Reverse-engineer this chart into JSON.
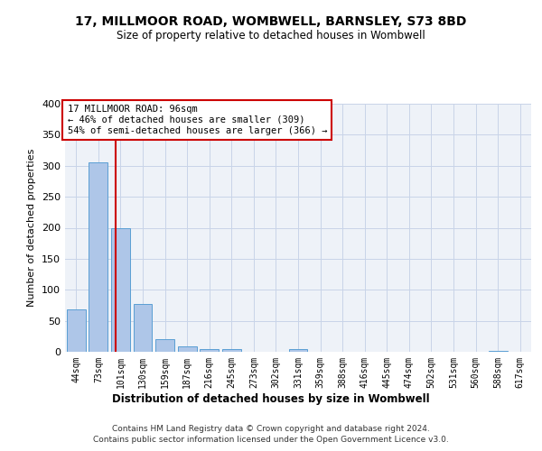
{
  "title": "17, MILLMOOR ROAD, WOMBWELL, BARNSLEY, S73 8BD",
  "subtitle": "Size of property relative to detached houses in Wombwell",
  "xlabel": "Distribution of detached houses by size in Wombwell",
  "ylabel": "Number of detached properties",
  "footer_line1": "Contains HM Land Registry data © Crown copyright and database right 2024.",
  "footer_line2": "Contains public sector information licensed under the Open Government Licence v3.0.",
  "categories": [
    "44sqm",
    "73sqm",
    "101sqm",
    "130sqm",
    "159sqm",
    "187sqm",
    "216sqm",
    "245sqm",
    "273sqm",
    "302sqm",
    "331sqm",
    "359sqm",
    "388sqm",
    "416sqm",
    "445sqm",
    "474sqm",
    "502sqm",
    "531sqm",
    "560sqm",
    "588sqm",
    "617sqm"
  ],
  "values": [
    68,
    305,
    199,
    77,
    20,
    9,
    4,
    4,
    0,
    0,
    5,
    0,
    0,
    0,
    0,
    0,
    0,
    0,
    0,
    2,
    0
  ],
  "bar_color": "#aec6e8",
  "bar_edge_color": "#5a9fd4",
  "grid_color": "#c8d4e8",
  "background_color": "#eef2f8",
  "property_label": "17 MILLMOOR ROAD: 96sqm",
  "annotation_line1": "← 46% of detached houses are smaller (309)",
  "annotation_line2": "54% of semi-detached houses are larger (366) →",
  "vline_color": "#cc0000",
  "vline_x_index": 1.79,
  "annotation_box_color": "#ffffff",
  "annotation_box_edge_color": "#cc0000",
  "ylim": [
    0,
    400
  ],
  "yticks": [
    0,
    50,
    100,
    150,
    200,
    250,
    300,
    350,
    400
  ]
}
